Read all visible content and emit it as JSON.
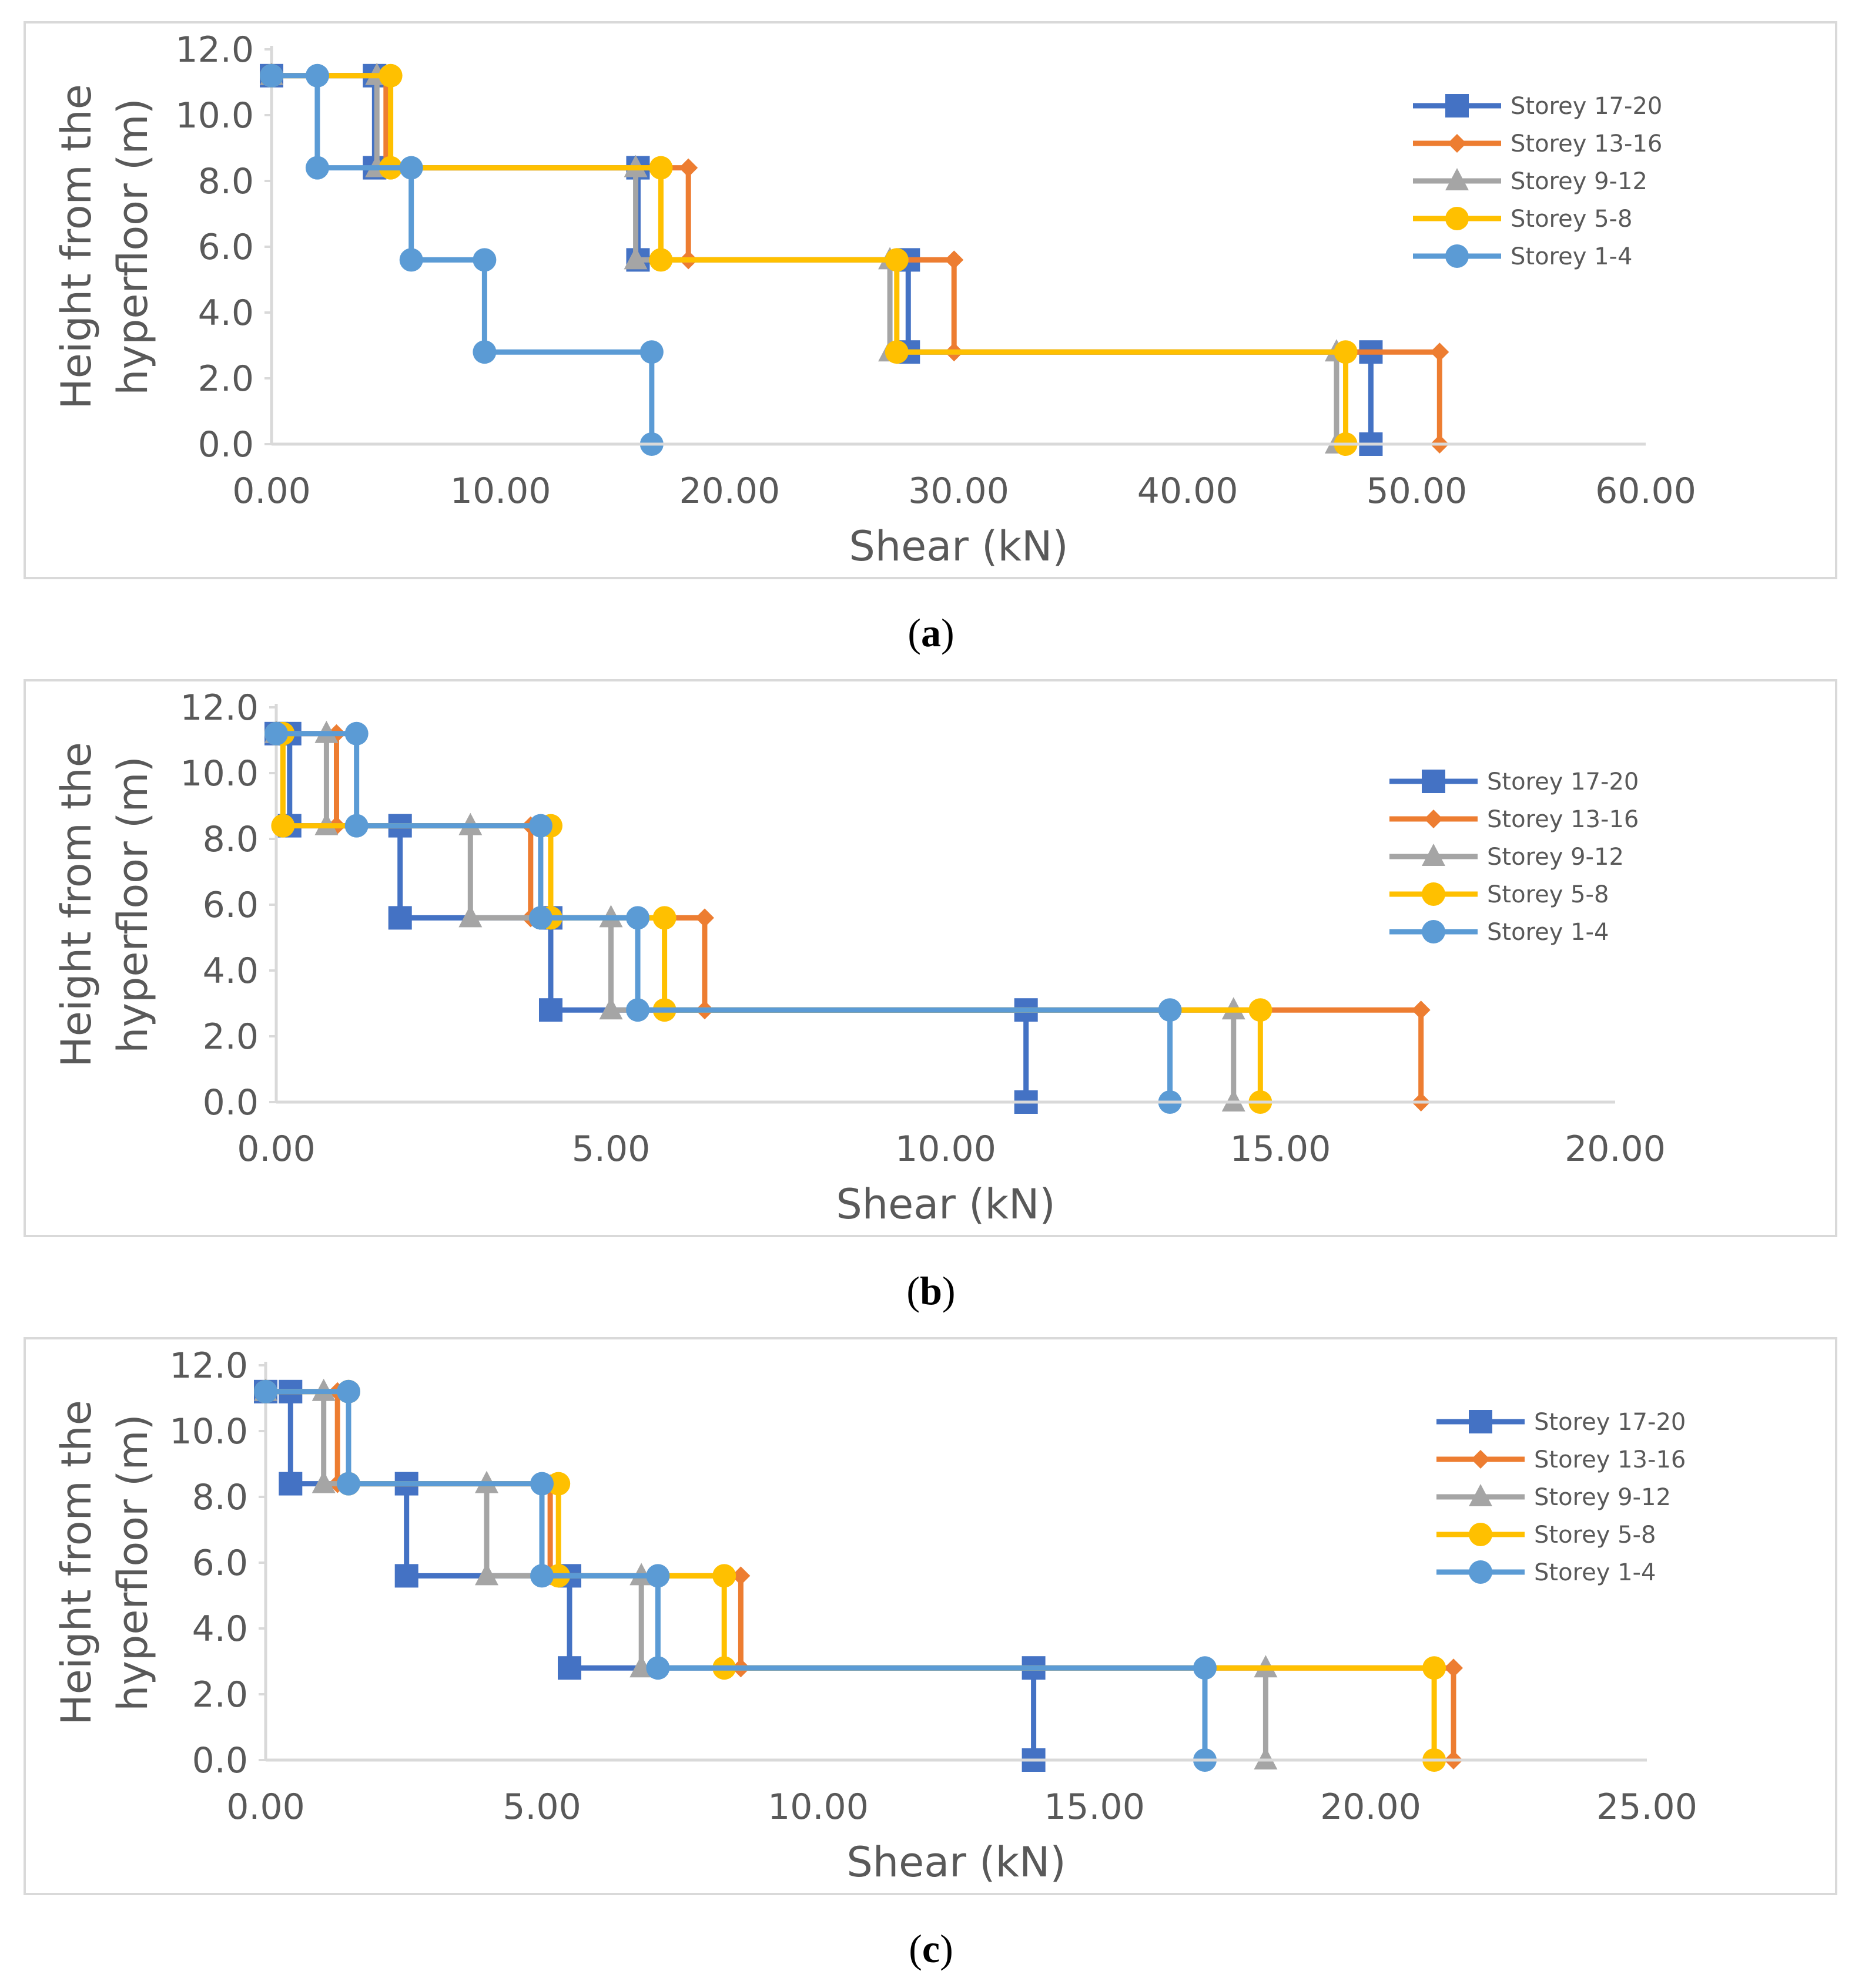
{
  "colors": {
    "Storey 17-20": "#4472C4",
    "Storey 13-16": "#ED7D31",
    "Storey 9-12": "#A5A5A5",
    "Storey 5-8": "#FFC000",
    "Storey 1-4": "#5B9BD5",
    "axis": "#d9d9d9",
    "text": "#595959"
  },
  "chart_data": [
    {
      "id": "a",
      "type": "line",
      "caption": "a",
      "title": "",
      "xlabel": "Shear (kN)",
      "ylabel": [
        "Height from the",
        "hyperfloor (m)"
      ],
      "xlim": [
        0,
        60
      ],
      "xticks": [
        "0.00",
        "10.00",
        "20.00",
        "30.00",
        "40.00",
        "50.00",
        "60.00"
      ],
      "ylim": [
        0,
        12
      ],
      "yticks": [
        "0.0",
        "2.0",
        "4.0",
        "6.0",
        "8.0",
        "10.0",
        "12.0"
      ],
      "legend": "right",
      "series": [
        {
          "name": "Storey 17-20",
          "marker": "square",
          "points": [
            [
              0,
              11.2
            ],
            [
              4.5,
              11.2
            ],
            [
              4.5,
              8.4
            ],
            [
              16,
              8.4
            ],
            [
              16,
              5.6
            ],
            [
              27.8,
              5.6
            ],
            [
              27.8,
              2.8
            ],
            [
              48,
              2.8
            ],
            [
              48,
              0
            ]
          ]
        },
        {
          "name": "Storey 13-16",
          "marker": "diamond",
          "points": [
            [
              0,
              11.2
            ],
            [
              5,
              11.2
            ],
            [
              5,
              8.4
            ],
            [
              18.2,
              8.4
            ],
            [
              18.2,
              5.6
            ],
            [
              29.8,
              5.6
            ],
            [
              29.8,
              2.8
            ],
            [
              51,
              2.8
            ],
            [
              51,
              0
            ]
          ]
        },
        {
          "name": "Storey 9-12",
          "marker": "triangle",
          "points": [
            [
              0,
              11.2
            ],
            [
              4.6,
              11.2
            ],
            [
              4.6,
              8.4
            ],
            [
              15.9,
              8.4
            ],
            [
              15.9,
              5.6
            ],
            [
              27,
              5.6
            ],
            [
              27,
              2.8
            ],
            [
              46.5,
              2.8
            ],
            [
              46.5,
              0
            ]
          ]
        },
        {
          "name": "Storey 5-8",
          "marker": "circle",
          "points": [
            [
              0,
              11.2
            ],
            [
              5.2,
              11.2
            ],
            [
              5.2,
              8.4
            ],
            [
              17,
              8.4
            ],
            [
              17,
              5.6
            ],
            [
              27.3,
              5.6
            ],
            [
              27.3,
              2.8
            ],
            [
              46.9,
              2.8
            ],
            [
              46.9,
              0
            ]
          ]
        },
        {
          "name": "Storey 1-4",
          "marker": "circle",
          "points": [
            [
              0,
              11.2
            ],
            [
              2,
              11.2
            ],
            [
              2,
              8.4
            ],
            [
              6.1,
              8.4
            ],
            [
              6.1,
              5.6
            ],
            [
              9.3,
              5.6
            ],
            [
              9.3,
              2.8
            ],
            [
              16.6,
              2.8
            ],
            [
              16.6,
              0
            ]
          ]
        }
      ]
    },
    {
      "id": "b",
      "type": "line",
      "caption": "b",
      "title": "",
      "xlabel": "Shear (kN)",
      "ylabel": [
        "Height from the",
        "hyperfloor (m)"
      ],
      "xlim": [
        0,
        20
      ],
      "xticks": [
        "0.00",
        "5.00",
        "10.00",
        "15.00",
        "20.00"
      ],
      "ylim": [
        0,
        12
      ],
      "yticks": [
        "0.0",
        "2.0",
        "4.0",
        "6.0",
        "8.0",
        "10.0",
        "12.0"
      ],
      "legend": "right",
      "series": [
        {
          "name": "Storey 17-20",
          "marker": "square",
          "points": [
            [
              0,
              11.2
            ],
            [
              0.2,
              11.2
            ],
            [
              0.2,
              8.4
            ],
            [
              1.85,
              8.4
            ],
            [
              1.85,
              5.6
            ],
            [
              4.1,
              5.6
            ],
            [
              4.1,
              2.8
            ],
            [
              11.2,
              2.8
            ],
            [
              11.2,
              0
            ]
          ]
        },
        {
          "name": "Storey 13-16",
          "marker": "diamond",
          "points": [
            [
              0,
              11.2
            ],
            [
              0.9,
              11.2
            ],
            [
              0.9,
              8.4
            ],
            [
              3.8,
              8.4
            ],
            [
              3.8,
              5.6
            ],
            [
              6.4,
              5.6
            ],
            [
              6.4,
              2.8
            ],
            [
              17.1,
              2.8
            ],
            [
              17.1,
              0
            ]
          ]
        },
        {
          "name": "Storey 9-12",
          "marker": "triangle",
          "points": [
            [
              0,
              11.2
            ],
            [
              0.75,
              11.2
            ],
            [
              0.75,
              8.4
            ],
            [
              2.9,
              8.4
            ],
            [
              2.9,
              5.6
            ],
            [
              5,
              5.6
            ],
            [
              5,
              2.8
            ],
            [
              14.3,
              2.8
            ],
            [
              14.3,
              0
            ]
          ]
        },
        {
          "name": "Storey 5-8",
          "marker": "circle",
          "points": [
            [
              0,
              11.2
            ],
            [
              0.1,
              11.2
            ],
            [
              0.1,
              8.4
            ],
            [
              4.1,
              8.4
            ],
            [
              4.1,
              5.6
            ],
            [
              5.8,
              5.6
            ],
            [
              5.8,
              2.8
            ],
            [
              14.7,
              2.8
            ],
            [
              14.7,
              0
            ]
          ]
        },
        {
          "name": "Storey 1-4",
          "marker": "circle",
          "points": [
            [
              0,
              11.2
            ],
            [
              1.2,
              11.2
            ],
            [
              1.2,
              8.4
            ],
            [
              3.95,
              8.4
            ],
            [
              3.95,
              5.6
            ],
            [
              5.4,
              5.6
            ],
            [
              5.4,
              2.8
            ],
            [
              13.35,
              2.8
            ],
            [
              13.35,
              0
            ]
          ]
        }
      ]
    },
    {
      "id": "c",
      "type": "line",
      "caption": "c",
      "title": "",
      "xlabel": "Shear (kN)",
      "ylabel": [
        "Height from the",
        "hyperfloor (m)"
      ],
      "xlim": [
        0,
        25
      ],
      "xticks": [
        "0.00",
        "5.00",
        "10.00",
        "15.00",
        "20.00",
        "25.00"
      ],
      "ylim": [
        0,
        12
      ],
      "yticks": [
        "0.0",
        "2.0",
        "4.0",
        "6.0",
        "8.0",
        "10.0",
        "12.0"
      ],
      "legend": "right",
      "series": [
        {
          "name": "Storey 17-20",
          "marker": "square",
          "points": [
            [
              0,
              11.2
            ],
            [
              0.45,
              11.2
            ],
            [
              0.45,
              8.4
            ],
            [
              2.55,
              8.4
            ],
            [
              2.55,
              5.6
            ],
            [
              5.5,
              5.6
            ],
            [
              5.5,
              2.8
            ],
            [
              13.9,
              2.8
            ],
            [
              13.9,
              0
            ]
          ]
        },
        {
          "name": "Storey 13-16",
          "marker": "diamond",
          "points": [
            [
              0,
              11.2
            ],
            [
              1.3,
              11.2
            ],
            [
              1.3,
              8.4
            ],
            [
              5.15,
              8.4
            ],
            [
              5.15,
              5.6
            ],
            [
              8.6,
              5.6
            ],
            [
              8.6,
              2.8
            ],
            [
              21.5,
              2.8
            ],
            [
              21.5,
              0
            ]
          ]
        },
        {
          "name": "Storey 9-12",
          "marker": "triangle",
          "points": [
            [
              0,
              11.2
            ],
            [
              1.05,
              11.2
            ],
            [
              1.05,
              8.4
            ],
            [
              4,
              8.4
            ],
            [
              4,
              5.6
            ],
            [
              6.8,
              5.6
            ],
            [
              6.8,
              2.8
            ],
            [
              18.1,
              2.8
            ],
            [
              18.1,
              0
            ]
          ]
        },
        {
          "name": "Storey 5-8",
          "marker": "circle",
          "points": [
            [
              0,
              11.2
            ],
            [
              1.5,
              11.2
            ],
            [
              1.5,
              8.4
            ],
            [
              5.3,
              8.4
            ],
            [
              5.3,
              5.6
            ],
            [
              8.3,
              5.6
            ],
            [
              8.3,
              2.8
            ],
            [
              21.15,
              2.8
            ],
            [
              21.15,
              0
            ]
          ]
        },
        {
          "name": "Storey 1-4",
          "marker": "circle",
          "points": [
            [
              0,
              11.2
            ],
            [
              1.5,
              11.2
            ],
            [
              1.5,
              8.4
            ],
            [
              5,
              8.4
            ],
            [
              5,
              5.6
            ],
            [
              7.1,
              5.6
            ],
            [
              7.1,
              2.8
            ],
            [
              17,
              2.8
            ],
            [
              17,
              0
            ]
          ]
        }
      ]
    }
  ]
}
